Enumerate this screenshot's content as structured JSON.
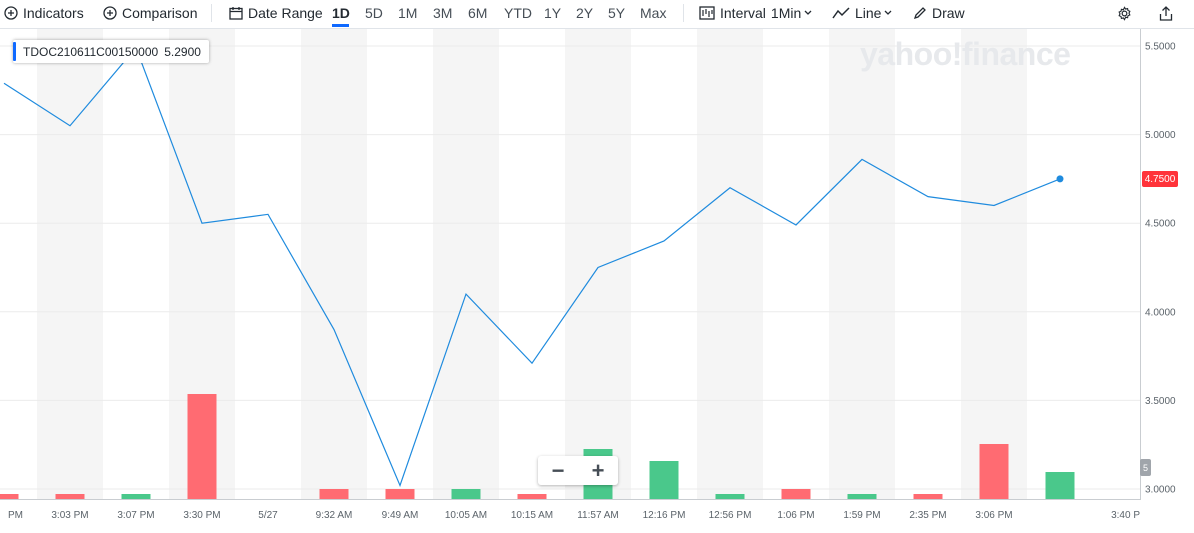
{
  "toolbar": {
    "indicators": "Indicators",
    "comparison": "Comparison",
    "date_range": "Date Range",
    "ranges": [
      "1D",
      "5D",
      "1M",
      "3M",
      "6M",
      "YTD",
      "1Y",
      "2Y",
      "5Y",
      "Max"
    ],
    "active_range": "1D",
    "interval_label": "Interval",
    "interval_value": "1Min",
    "chart_type": "Line",
    "draw": "Draw"
  },
  "legend": {
    "symbol": "TDOC210611C00150000",
    "value": "5.2900"
  },
  "watermark": "yahoo!finance",
  "current_price_label": "4.7500",
  "volume_label": "5",
  "zoom": {
    "minus": "−",
    "plus": "+"
  },
  "colors": {
    "line": "#1f8bde",
    "up": "#4ac88b",
    "down": "#ff6b72",
    "price_tag": "#ff333a",
    "accent": "#0f69ff"
  },
  "chart_data": {
    "type": "line",
    "series": [
      {
        "values": [
          5.29,
          5.05,
          5.49,
          4.5,
          4.55,
          3.9,
          3.02,
          4.1,
          3.71,
          4.25,
          4.4,
          4.7,
          4.49,
          4.86,
          4.65,
          4.6,
          4.75
        ]
      }
    ],
    "volume": [
      {
        "value": 0.5,
        "dir": "down"
      },
      {
        "value": 0.5,
        "dir": "down"
      },
      {
        "value": 0.5,
        "dir": "up"
      },
      {
        "value": 10.5,
        "dir": "down"
      },
      {
        "value": 0,
        "dir": "none"
      },
      {
        "value": 1,
        "dir": "down"
      },
      {
        "value": 1,
        "dir": "down"
      },
      {
        "value": 1,
        "dir": "up"
      },
      {
        "value": 0.5,
        "dir": "down"
      },
      {
        "value": 5,
        "dir": "up"
      },
      {
        "value": 3.8,
        "dir": "up"
      },
      {
        "value": 0.5,
        "dir": "up"
      },
      {
        "value": 1,
        "dir": "down"
      },
      {
        "value": 0.5,
        "dir": "up"
      },
      {
        "value": 0.5,
        "dir": "down"
      },
      {
        "value": 5.5,
        "dir": "down"
      },
      {
        "value": 2.7,
        "dir": "up"
      }
    ],
    "x_labels": [
      "PM",
      "3:03 PM",
      "3:07 PM",
      "3:30 PM",
      "5/27",
      "9:32 AM",
      "9:49 AM",
      "10:05 AM",
      "10:15 AM",
      "11:57 AM",
      "12:16 PM",
      "12:56 PM",
      "1:06 PM",
      "1:59 PM",
      "2:35 PM",
      "3:06 PM",
      "3:40 P"
    ],
    "y_ticks": [
      "5.5000",
      "5.0000",
      "4.5000",
      "4.0000",
      "3.5000",
      "3.0000"
    ],
    "ylim": [
      3.0,
      5.5
    ]
  }
}
